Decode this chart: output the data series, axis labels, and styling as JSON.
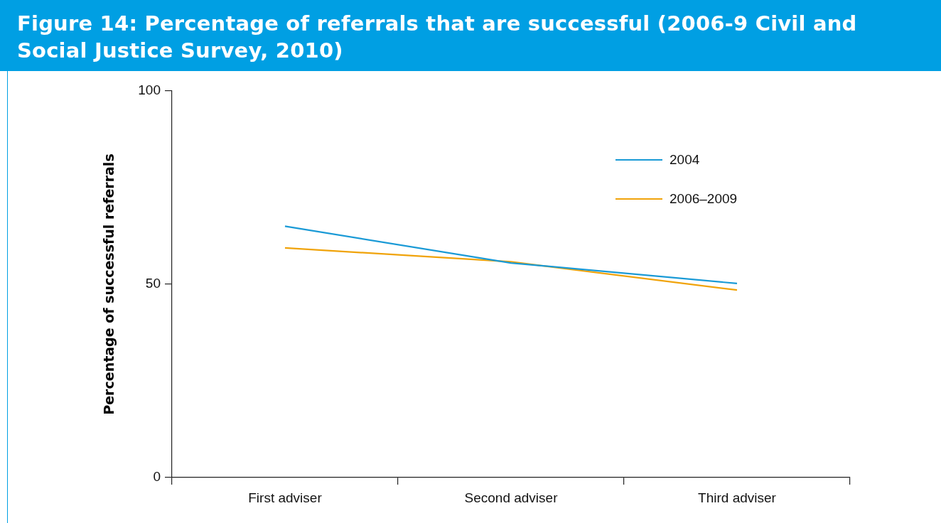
{
  "chart_data": {
    "type": "line",
    "title": "Figure 14:  Percentage of referrals that are successful (2006-9 Civil and Social Justice Survey, 2010)",
    "ylabel": "Percentage of successful referrals",
    "categories": [
      "First adviser",
      "Second adviser",
      "Third adviser"
    ],
    "series": [
      {
        "name": "2004",
        "color": "#1a9ad6",
        "values": [
          65,
          55.5,
          50.2
        ]
      },
      {
        "name": "2006–2009",
        "color": "#f0a30a",
        "values": [
          59.4,
          55.8,
          48.5
        ]
      }
    ],
    "ylim": [
      0,
      100
    ],
    "yticks": [
      0,
      50,
      100
    ],
    "grid": false,
    "legend": "top right",
    "marker": "none",
    "line_style": "solid"
  }
}
